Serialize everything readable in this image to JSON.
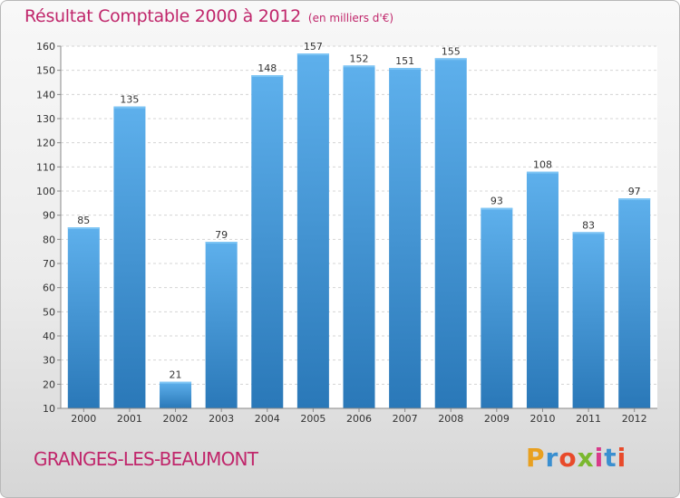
{
  "header": {
    "title": "Résultat Comptable 2000 à 2012",
    "subtitle": "(en milliers d'€)"
  },
  "commune_name": "GRANGES-LES-BEAUMONT",
  "brand": {
    "name": "Proxiti",
    "letters": [
      "P",
      "r",
      "o",
      "x",
      "i",
      "t",
      "i"
    ]
  },
  "colors": {
    "accent": "#c0266b",
    "bar_top": "#5eb0ec",
    "bar_bottom": "#2a78b8"
  },
  "chart_data": {
    "type": "bar",
    "title": "Résultat Comptable 2000 à 2012",
    "subtitle": "(en milliers d'€)",
    "categories": [
      "2000",
      "2001",
      "2002",
      "2003",
      "2004",
      "2005",
      "2006",
      "2007",
      "2008",
      "2009",
      "2010",
      "2011",
      "2012"
    ],
    "values": [
      85,
      135,
      21,
      79,
      148,
      157,
      152,
      151,
      155,
      93,
      108,
      83,
      97
    ],
    "ylim": [
      10,
      160
    ],
    "yticks": [
      10,
      20,
      30,
      40,
      50,
      60,
      70,
      80,
      90,
      100,
      110,
      120,
      130,
      140,
      150,
      160
    ],
    "xlabel": "",
    "ylabel": "",
    "grid": true,
    "legend": "none"
  }
}
